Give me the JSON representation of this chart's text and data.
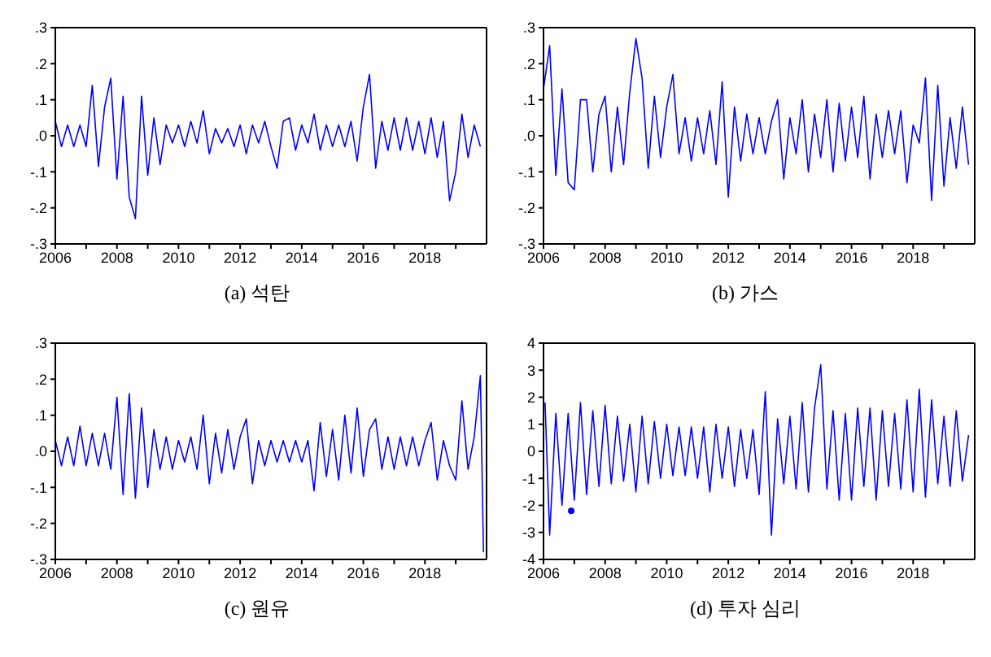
{
  "chart_data": [
    {
      "type": "line",
      "title": "(a) 석탄",
      "xlim": [
        2006,
        2020
      ],
      "xticks": [
        2006,
        {
          "value": 2007,
          "label": null
        },
        2008,
        {
          "value": 2009,
          "label": null
        },
        2010,
        {
          "value": 2011,
          "label": null
        },
        2012,
        {
          "value": 2013,
          "label": null
        },
        2014,
        {
          "value": 2015,
          "label": null
        },
        2016,
        {
          "value": 2017,
          "label": null
        },
        2018,
        {
          "value": 2019,
          "label": null
        }
      ],
      "ylim": [
        -0.3,
        0.3
      ],
      "yticks": [
        {
          "value": -0.3,
          "label": "-.3"
        },
        {
          "value": -0.2,
          "label": "-.2"
        },
        {
          "value": -0.1,
          "label": "-.1"
        },
        {
          "value": 0,
          "label": ".0"
        },
        {
          "value": 0.1,
          "label": ".1"
        },
        {
          "value": 0.2,
          "label": ".2"
        },
        {
          "value": 0.3,
          "label": ".3"
        }
      ],
      "x": [
        2006,
        2006.2,
        2006.4,
        2006.6,
        2006.8,
        2007,
        2007.2,
        2007.4,
        2007.6,
        2007.8,
        2008,
        2008.2,
        2008.4,
        2008.6,
        2008.8,
        2009,
        2009.2,
        2009.4,
        2009.6,
        2009.8,
        2010,
        2010.2,
        2010.4,
        2010.6,
        2010.8,
        2011,
        2011.2,
        2011.4,
        2011.6,
        2011.8,
        2012,
        2012.2,
        2012.4,
        2012.6,
        2012.8,
        2013,
        2013.2,
        2013.4,
        2013.6,
        2013.8,
        2014,
        2014.2,
        2014.4,
        2014.6,
        2014.8,
        2015,
        2015.2,
        2015.4,
        2015.6,
        2015.8,
        2016,
        2016.2,
        2016.4,
        2016.6,
        2016.8,
        2017,
        2017.2,
        2017.4,
        2017.6,
        2017.8,
        2018,
        2018.2,
        2018.4,
        2018.6,
        2018.8,
        2019,
        2019.2,
        2019.4,
        2019.6,
        2019.8
      ],
      "series": [
        {
          "color": "#0000ff",
          "values": [
            0.04,
            -0.03,
            0.03,
            -0.03,
            0.03,
            -0.03,
            0.14,
            -0.085,
            0.08,
            0.16,
            -0.12,
            0.11,
            -0.17,
            -0.23,
            0.11,
            -0.11,
            0.05,
            -0.08,
            0.03,
            -0.02,
            0.03,
            -0.03,
            0.04,
            -0.02,
            0.07,
            -0.05,
            0.02,
            -0.02,
            0.02,
            -0.03,
            0.03,
            -0.05,
            0.03,
            -0.02,
            0.04,
            -0.03,
            -0.09,
            0.04,
            0.05,
            -0.04,
            0.03,
            -0.02,
            0.06,
            -0.04,
            0.03,
            -0.03,
            0.03,
            -0.03,
            0.04,
            -0.07,
            0.08,
            0.17,
            -0.09,
            0.04,
            -0.04,
            0.05,
            -0.04,
            0.05,
            -0.04,
            0.04,
            -0.05,
            0.05,
            -0.06,
            0.04,
            -0.18,
            -0.1,
            0.06,
            -0.06,
            0.03,
            -0.03
          ]
        }
      ]
    },
    {
      "type": "line",
      "title": "(b) 가스",
      "xlim": [
        2006,
        2020
      ],
      "xticks": [
        2006,
        {
          "value": 2007,
          "label": null
        },
        2008,
        {
          "value": 2009,
          "label": null
        },
        2010,
        {
          "value": 2011,
          "label": null
        },
        2012,
        {
          "value": 2013,
          "label": null
        },
        2014,
        {
          "value": 2015,
          "label": null
        },
        2016,
        {
          "value": 2017,
          "label": null
        },
        2018,
        {
          "value": 2019,
          "label": null
        }
      ],
      "ylim": [
        -0.3,
        0.3
      ],
      "yticks": [
        {
          "value": -0.3,
          "label": "-.3"
        },
        {
          "value": -0.2,
          "label": "-.2"
        },
        {
          "value": -0.1,
          "label": "-.1"
        },
        {
          "value": 0,
          "label": ".0"
        },
        {
          "value": 0.1,
          "label": ".1"
        },
        {
          "value": 0.2,
          "label": ".2"
        },
        {
          "value": 0.3,
          "label": ".3"
        }
      ],
      "x": [
        2006,
        2006.2,
        2006.4,
        2006.6,
        2006.8,
        2007,
        2007.2,
        2007.4,
        2007.6,
        2007.8,
        2008,
        2008.2,
        2008.4,
        2008.6,
        2008.8,
        2009,
        2009.2,
        2009.4,
        2009.6,
        2009.8,
        2010,
        2010.2,
        2010.4,
        2010.6,
        2010.8,
        2011,
        2011.2,
        2011.4,
        2011.6,
        2011.8,
        2012,
        2012.2,
        2012.4,
        2012.6,
        2012.8,
        2013,
        2013.2,
        2013.4,
        2013.6,
        2013.8,
        2014,
        2014.2,
        2014.4,
        2014.6,
        2014.8,
        2015,
        2015.2,
        2015.4,
        2015.6,
        2015.8,
        2016,
        2016.2,
        2016.4,
        2016.6,
        2016.8,
        2017,
        2017.2,
        2017.4,
        2017.6,
        2017.8,
        2018,
        2018.2,
        2018.4,
        2018.6,
        2018.8,
        2019,
        2019.2,
        2019.4,
        2019.6,
        2019.8
      ],
      "series": [
        {
          "color": "#0000ff",
          "values": [
            0.13,
            0.25,
            -0.11,
            0.13,
            -0.13,
            -0.15,
            0.1,
            0.1,
            -0.1,
            0.06,
            0.11,
            -0.1,
            0.08,
            -0.08,
            0.12,
            0.27,
            0.16,
            -0.09,
            0.11,
            -0.06,
            0.08,
            0.17,
            -0.05,
            0.05,
            -0.07,
            0.05,
            -0.05,
            0.07,
            -0.08,
            0.15,
            -0.17,
            0.08,
            -0.07,
            0.06,
            -0.05,
            0.05,
            -0.05,
            0.04,
            0.1,
            -0.12,
            0.05,
            -0.05,
            0.1,
            -0.1,
            0.06,
            -0.06,
            0.1,
            -0.1,
            0.09,
            -0.07,
            0.08,
            -0.06,
            0.11,
            -0.12,
            0.06,
            -0.06,
            0.07,
            -0.05,
            0.07,
            -0.13,
            0.03,
            -0.02,
            0.16,
            -0.18,
            0.14,
            -0.14,
            0.05,
            -0.09,
            0.08,
            -0.08
          ]
        }
      ]
    },
    {
      "type": "line",
      "title": "(c) 원유",
      "xlim": [
        2006,
        2020
      ],
      "xticks": [
        2006,
        {
          "value": 2007,
          "label": null
        },
        2008,
        {
          "value": 2009,
          "label": null
        },
        2010,
        {
          "value": 2011,
          "label": null
        },
        2012,
        {
          "value": 2013,
          "label": null
        },
        2014,
        {
          "value": 2015,
          "label": null
        },
        2016,
        {
          "value": 2017,
          "label": null
        },
        2018,
        {
          "value": 2019,
          "label": null
        }
      ],
      "ylim": [
        -0.3,
        0.3
      ],
      "yticks": [
        {
          "value": -0.3,
          "label": "-.3"
        },
        {
          "value": -0.2,
          "label": "-.2"
        },
        {
          "value": -0.1,
          "label": "-.1"
        },
        {
          "value": 0,
          "label": ".0"
        },
        {
          "value": 0.1,
          "label": ".1"
        },
        {
          "value": 0.2,
          "label": ".2"
        },
        {
          "value": 0.3,
          "label": ".3"
        }
      ],
      "x": [
        2006,
        2006.2,
        2006.4,
        2006.6,
        2006.8,
        2007,
        2007.2,
        2007.4,
        2007.6,
        2007.8,
        2008,
        2008.2,
        2008.4,
        2008.6,
        2008.8,
        2009,
        2009.2,
        2009.4,
        2009.6,
        2009.8,
        2010,
        2010.2,
        2010.4,
        2010.6,
        2010.8,
        2011,
        2011.2,
        2011.4,
        2011.6,
        2011.8,
        2012,
        2012.2,
        2012.4,
        2012.6,
        2012.8,
        2013,
        2013.2,
        2013.4,
        2013.6,
        2013.8,
        2014,
        2014.2,
        2014.4,
        2014.6,
        2014.8,
        2015,
        2015.2,
        2015.4,
        2015.6,
        2015.8,
        2016,
        2016.2,
        2016.4,
        2016.6,
        2016.8,
        2017,
        2017.2,
        2017.4,
        2017.6,
        2017.8,
        2018,
        2018.2,
        2018.4,
        2018.6,
        2018.8,
        2019,
        2019.2,
        2019.4,
        2019.6,
        2019.8,
        2019.9
      ],
      "series": [
        {
          "color": "#0000ff",
          "values": [
            0.03,
            -0.04,
            0.04,
            -0.04,
            0.07,
            -0.04,
            0.05,
            -0.04,
            0.05,
            -0.05,
            0.15,
            -0.12,
            0.16,
            -0.13,
            0.12,
            -0.1,
            0.06,
            -0.05,
            0.04,
            -0.05,
            0.03,
            -0.03,
            0.04,
            -0.05,
            0.1,
            -0.09,
            0.05,
            -0.06,
            0.06,
            -0.05,
            0.04,
            0.09,
            -0.09,
            0.03,
            -0.04,
            0.03,
            -0.03,
            0.03,
            -0.03,
            0.03,
            -0.03,
            0.03,
            -0.11,
            0.08,
            -0.07,
            0.06,
            -0.08,
            0.1,
            -0.06,
            0.12,
            -0.07,
            0.06,
            0.09,
            -0.05,
            0.04,
            -0.05,
            0.04,
            -0.04,
            0.04,
            -0.04,
            0.03,
            0.08,
            -0.08,
            0.03,
            -0.04,
            -0.08,
            0.14,
            -0.05,
            0.04,
            0.21,
            -0.28
          ]
        }
      ]
    },
    {
      "type": "line",
      "title": "(d) 투자 심리",
      "xlim": [
        2006,
        2020
      ],
      "xticks": [
        2006,
        {
          "value": 2007,
          "label": null
        },
        2008,
        {
          "value": 2009,
          "label": null
        },
        2010,
        {
          "value": 2011,
          "label": null
        },
        2012,
        {
          "value": 2013,
          "label": null
        },
        2014,
        {
          "value": 2015,
          "label": null
        },
        2016,
        {
          "value": 2017,
          "label": null
        },
        2018,
        {
          "value": 2019,
          "label": null
        }
      ],
      "ylim": [
        -4,
        4
      ],
      "yticks": [
        -4,
        -3,
        -2,
        -1,
        0,
        1,
        2,
        3,
        4
      ],
      "x": [
        2006.05,
        2006.2,
        2006.4,
        2006.6,
        2006.8,
        2007,
        2007.2,
        2007.4,
        2007.6,
        2007.8,
        2008,
        2008.2,
        2008.4,
        2008.6,
        2008.8,
        2009,
        2009.2,
        2009.4,
        2009.6,
        2009.8,
        2010,
        2010.2,
        2010.4,
        2010.6,
        2010.8,
        2011,
        2011.2,
        2011.4,
        2011.6,
        2011.8,
        2012,
        2012.2,
        2012.4,
        2012.6,
        2012.8,
        2013,
        2013.2,
        2013.4,
        2013.6,
        2013.8,
        2014,
        2014.2,
        2014.4,
        2014.6,
        2014.8,
        2015,
        2015.2,
        2015.4,
        2015.6,
        2015.8,
        2016,
        2016.2,
        2016.4,
        2016.6,
        2016.8,
        2017,
        2017.2,
        2017.4,
        2017.6,
        2017.8,
        2018,
        2018.2,
        2018.4,
        2018.6,
        2018.8,
        2019,
        2019.2,
        2019.4,
        2019.6,
        2019.8
      ],
      "series": [
        {
          "color": "#0000ff",
          "values": [
            1.8,
            -3.1,
            1.4,
            -2.0,
            1.4,
            -1.8,
            1.8,
            -1.6,
            1.5,
            -1.3,
            1.7,
            -1.2,
            1.3,
            -1.1,
            1.0,
            -1.5,
            1.3,
            -1.2,
            1.1,
            -1.0,
            1.0,
            -0.9,
            0.9,
            -0.9,
            0.9,
            -1.0,
            0.9,
            -1.5,
            1.0,
            -1.0,
            0.9,
            -1.3,
            0.8,
            -1.0,
            0.8,
            -1.6,
            2.2,
            -3.1,
            1.2,
            -1.2,
            1.3,
            -1.4,
            1.8,
            -1.5,
            1.6,
            3.2,
            -1.4,
            1.5,
            -1.8,
            1.4,
            -1.8,
            1.6,
            -1.3,
            1.6,
            -1.8,
            1.5,
            -1.3,
            1.4,
            -1.4,
            1.9,
            -1.5,
            2.3,
            -1.7,
            1.9,
            -1.2,
            1.3,
            -1.3,
            1.5,
            -1.1,
            0.6
          ]
        },
        {
          "type": "scatter",
          "color": "#0000ff",
          "x": [
            2006.9
          ],
          "values": [
            -2.2
          ]
        }
      ]
    }
  ]
}
